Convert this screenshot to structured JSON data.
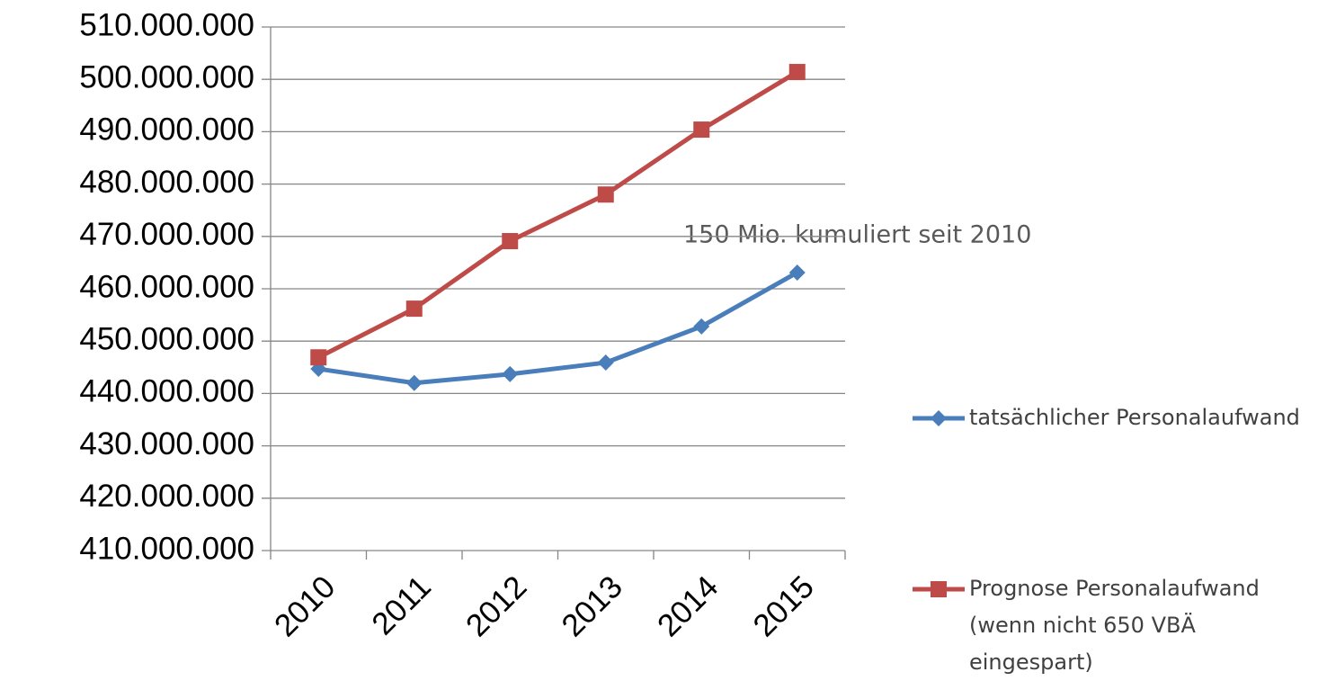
{
  "chart_data": {
    "type": "line",
    "annotation": "150 Mio. kumuliert seit 2010",
    "categories": [
      "2010",
      "2011",
      "2012",
      "2013",
      "2014",
      "2015"
    ],
    "series": [
      {
        "name": "tatsächlicher Personalaufwand",
        "color": "#4a7ebb",
        "marker": "diamond",
        "values": [
          444700000,
          442000000,
          443700000,
          445900000,
          452800000,
          463100000
        ]
      },
      {
        "name": "Prognose Personalaufwand (wenn nicht 650 VBÄ eingespart)",
        "color": "#be4b48",
        "marker": "square",
        "values": [
          446900000,
          456200000,
          469100000,
          478000000,
          490400000,
          501400000
        ]
      }
    ],
    "ylim": [
      410000000,
      510000000
    ],
    "yticks": [
      {
        "value": 410000000,
        "label": "410.000.000"
      },
      {
        "value": 420000000,
        "label": "420.000.000"
      },
      {
        "value": 430000000,
        "label": "430.000.000"
      },
      {
        "value": 440000000,
        "label": "440.000.000"
      },
      {
        "value": 450000000,
        "label": "450.000.000"
      },
      {
        "value": 460000000,
        "label": "460.000.000"
      },
      {
        "value": 470000000,
        "label": "470.000.000"
      },
      {
        "value": 480000000,
        "label": "480.000.000"
      },
      {
        "value": 490000000,
        "label": "490.000.000"
      },
      {
        "value": 500000000,
        "label": "500.000.000"
      },
      {
        "value": 510000000,
        "label": "510.000.000"
      }
    ],
    "grid": true,
    "legend": "right"
  }
}
